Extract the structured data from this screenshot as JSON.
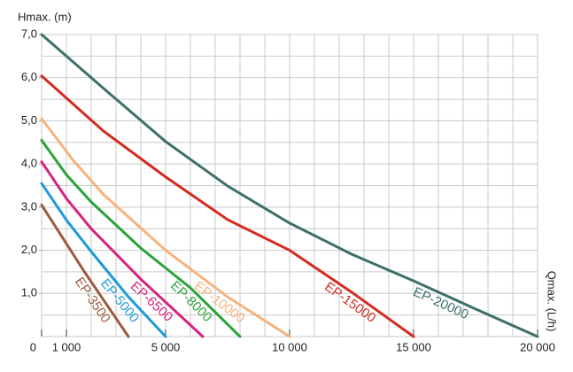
{
  "chart_data": {
    "type": "line",
    "y_label": "Hmax. (m)",
    "x_label": "Qmax. (L/h)",
    "xlim": [
      0,
      20000
    ],
    "ylim": [
      0,
      7
    ],
    "xticks": [
      0,
      {
        "value": 1000,
        "label": "1 000"
      },
      {
        "value": 5000,
        "label": "5 000"
      },
      {
        "value": 10000,
        "label": "10 000"
      },
      {
        "value": 15000,
        "label": "15 000"
      },
      {
        "value": 20000,
        "label": "20 000"
      }
    ],
    "yticks": [
      {
        "value": 1,
        "label": "1,0"
      },
      {
        "value": 2,
        "label": "2,0"
      },
      {
        "value": 3,
        "label": "3,0"
      },
      {
        "value": 4,
        "label": "4,0"
      },
      {
        "value": 5,
        "label": "5,0"
      },
      {
        "value": 6,
        "label": "6,0"
      },
      {
        "value": 7,
        "label": "7,0"
      }
    ],
    "grid": true,
    "xgrid_step": 1000,
    "ygrid_step": 0.5,
    "series": [
      {
        "name": "EP-3500",
        "color": "#9b5a3e",
        "x": [
          0,
          1750,
          3500
        ],
        "values": [
          3.05,
          1.48,
          0
        ]
      },
      {
        "name": "EP-5000",
        "color": "#1e9ad8",
        "x": [
          0,
          1000,
          2000,
          3500,
          5000
        ],
        "values": [
          3.55,
          2.7,
          1.97,
          0.92,
          0
        ]
      },
      {
        "name": "EP-6500",
        "color": "#d5247f",
        "x": [
          0,
          1000,
          2000,
          4000,
          6500
        ],
        "values": [
          4.05,
          3.2,
          2.5,
          1.33,
          0
        ]
      },
      {
        "name": "EP-8000",
        "color": "#2ba23c",
        "x": [
          0,
          1000,
          2000,
          4000,
          6000,
          8000
        ],
        "values": [
          4.55,
          3.75,
          3.12,
          2.05,
          1.13,
          0
        ]
      },
      {
        "name": "EP-10000",
        "color": "#f6b37c",
        "x": [
          0,
          1250,
          2500,
          5000,
          7500,
          10000
        ],
        "values": [
          5.05,
          4.1,
          3.29,
          2.0,
          0.92,
          0
        ]
      },
      {
        "name": "EP-15000",
        "color": "#d32b1f",
        "x": [
          0,
          2500,
          5000,
          7500,
          10000,
          12500,
          15000
        ],
        "values": [
          6.04,
          4.76,
          3.7,
          2.71,
          2.0,
          1.03,
          0
        ]
      },
      {
        "name": "EP-20000",
        "color": "#3d706b",
        "x": [
          0,
          2500,
          5000,
          7500,
          10000,
          12500,
          15000,
          17500,
          20000
        ],
        "values": [
          7.0,
          5.75,
          4.52,
          3.49,
          2.63,
          1.91,
          1.29,
          0.64,
          0
        ]
      }
    ]
  }
}
